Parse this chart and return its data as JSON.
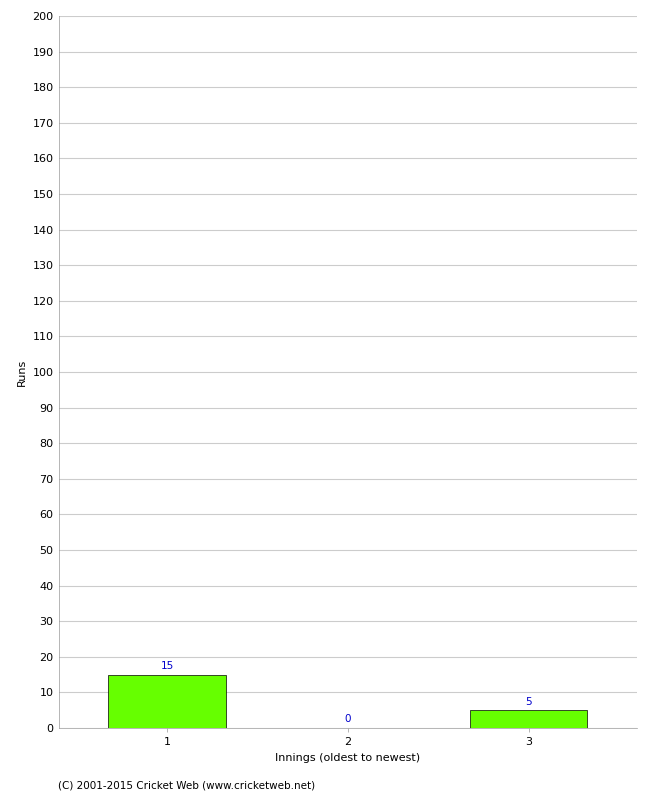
{
  "categories": [
    "1",
    "2",
    "3"
  ],
  "values": [
    15,
    0,
    5
  ],
  "bar_color": "#66ff00",
  "bar_edge_color": "#000000",
  "label_color": "#0000cc",
  "xlabel": "Innings (oldest to newest)",
  "ylabel": "Runs",
  "ylim": [
    0,
    200
  ],
  "yticks": [
    0,
    10,
    20,
    30,
    40,
    50,
    60,
    70,
    80,
    90,
    100,
    110,
    120,
    130,
    140,
    150,
    160,
    170,
    180,
    190,
    200
  ],
  "background_color": "#ffffff",
  "grid_color": "#cccccc",
  "footer": "(C) 2001-2015 Cricket Web (www.cricketweb.net)",
  "label_fontsize": 7.5,
  "axis_tick_fontsize": 8,
  "axis_label_fontsize": 8,
  "footer_fontsize": 7.5
}
